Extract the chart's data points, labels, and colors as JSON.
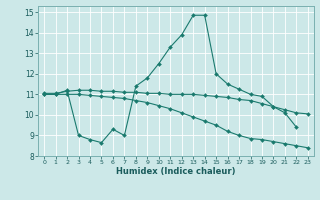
{
  "xlabel": "Humidex (Indice chaleur)",
  "bg_color": "#cce8e8",
  "line_color": "#1a7a6e",
  "grid_color": "#ffffff",
  "xlim": [
    -0.5,
    23.5
  ],
  "ylim": [
    8,
    15.3
  ],
  "xtick_labels": [
    "0",
    "1",
    "2",
    "3",
    "4",
    "5",
    "6",
    "7",
    "8",
    "9",
    "10",
    "11",
    "12",
    "13",
    "14",
    "15",
    "16",
    "17",
    "18",
    "19",
    "20",
    "21",
    "22",
    "23"
  ],
  "xtick_vals": [
    0,
    1,
    2,
    3,
    4,
    5,
    6,
    7,
    8,
    9,
    10,
    11,
    12,
    13,
    14,
    15,
    16,
    17,
    18,
    19,
    20,
    21,
    22,
    23
  ],
  "ytick_vals": [
    8,
    9,
    10,
    11,
    12,
    13,
    14,
    15
  ],
  "line1_x": [
    0,
    1,
    2,
    3,
    4,
    5,
    6,
    7,
    8,
    9,
    10,
    11,
    12,
    13,
    14,
    15,
    16,
    17,
    18,
    19,
    20,
    21,
    22
  ],
  "line1_y": [
    11.0,
    11.0,
    11.2,
    9.0,
    8.8,
    8.65,
    9.3,
    9.0,
    11.4,
    11.8,
    12.5,
    13.3,
    13.9,
    14.85,
    14.85,
    12.0,
    11.5,
    11.25,
    11.0,
    10.9,
    10.4,
    10.1,
    9.4
  ],
  "line2_x": [
    0,
    1,
    2,
    3,
    4,
    5,
    6,
    7,
    8,
    9,
    10,
    11,
    12,
    13,
    14,
    15,
    16,
    17,
    18,
    19,
    20,
    21,
    22,
    23
  ],
  "line2_y": [
    11.05,
    11.05,
    11.15,
    11.2,
    11.2,
    11.15,
    11.15,
    11.1,
    11.1,
    11.05,
    11.05,
    11.0,
    11.0,
    11.0,
    10.95,
    10.9,
    10.85,
    10.75,
    10.7,
    10.55,
    10.4,
    10.25,
    10.1,
    10.05
  ],
  "line3_x": [
    0,
    1,
    2,
    3,
    4,
    5,
    6,
    7,
    8,
    9,
    10,
    11,
    12,
    13,
    14,
    15,
    16,
    17,
    18,
    19,
    20,
    21,
    22,
    23
  ],
  "line3_y": [
    11.0,
    11.0,
    11.0,
    11.0,
    10.95,
    10.9,
    10.85,
    10.8,
    10.7,
    10.6,
    10.45,
    10.3,
    10.1,
    9.9,
    9.7,
    9.5,
    9.2,
    9.0,
    8.85,
    8.8,
    8.7,
    8.6,
    8.5,
    8.4
  ]
}
